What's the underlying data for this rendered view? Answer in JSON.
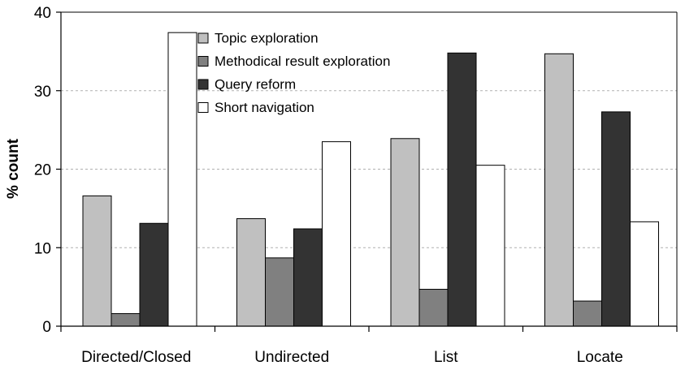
{
  "chart_data": {
    "type": "bar",
    "title": "",
    "xlabel": "",
    "ylabel": "% count",
    "ylim": [
      0,
      40
    ],
    "yticks": [
      0,
      10,
      20,
      30,
      40
    ],
    "grid": "horizontal dashed",
    "legend_position": "top-left",
    "categories": [
      "Directed/Closed",
      "Undirected",
      "List",
      "Locate"
    ],
    "series": [
      {
        "name": "Topic exploration",
        "color": "#c0c0c0",
        "values": [
          16.6,
          13.7,
          23.9,
          34.7
        ]
      },
      {
        "name": "Methodical result exploration",
        "color": "#808080",
        "values": [
          1.6,
          8.7,
          4.7,
          3.2
        ]
      },
      {
        "name": "Query reform",
        "color": "#333333",
        "values": [
          13.1,
          12.4,
          34.8,
          27.3
        ]
      },
      {
        "name": "Short navigation",
        "color": "#ffffff",
        "values": [
          37.4,
          23.5,
          20.5,
          13.3
        ]
      }
    ]
  }
}
